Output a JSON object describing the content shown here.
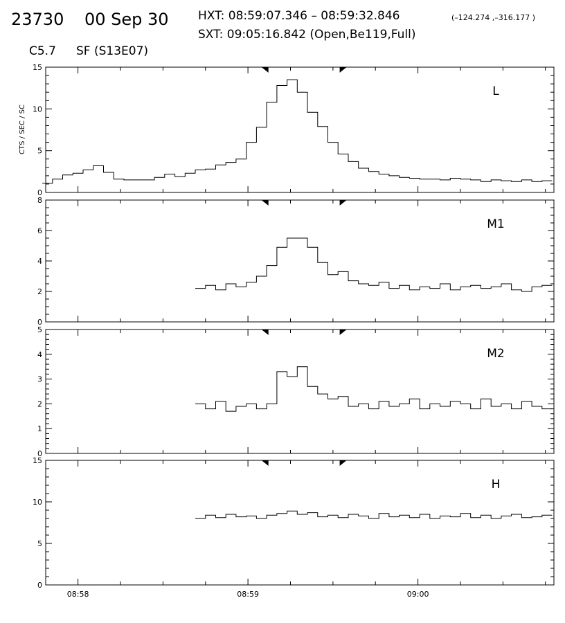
{
  "header": {
    "flare_id": "23730",
    "date": "00 Sep 30",
    "hxt_label": "HXT: 08:59:07.346 – 08:59:32.846",
    "hxt_coords": "(–124.274 ,–316.177 )",
    "sxt_label": "SXT: 09:05:16.842 (Open,Be119,Full)",
    "goes_class": "C5.7",
    "location": "SF (S13E07)"
  },
  "chart_data": {
    "type": "line",
    "step": true,
    "shared_x": {
      "tick_labels": [
        "08:58",
        "08:59",
        "09:00"
      ],
      "tick_minutes": [
        0,
        1,
        2
      ],
      "xlim_minutes": [
        -0.19,
        2.8
      ],
      "minor_per_major": 4
    },
    "ylabel": "CTS / SEC / SC",
    "interval_markers_minutes": [
      1.1,
      1.56
    ],
    "panels": [
      {
        "label": "L",
        "ylim": [
          0,
          15
        ],
        "ytick_labels": [
          "0",
          "5",
          "10",
          "15"
        ],
        "ytick_values": [
          0,
          5,
          10,
          15
        ],
        "minor_step": 1,
        "x_minutes": [
          -0.18,
          -0.12,
          -0.06,
          -0.0,
          0.06,
          0.12,
          0.18,
          0.24,
          0.3,
          0.36,
          0.42,
          0.48,
          0.54,
          0.6,
          0.66,
          0.72,
          0.78,
          0.84,
          0.9,
          0.96,
          1.02,
          1.08,
          1.14,
          1.2,
          1.26,
          1.32,
          1.38,
          1.44,
          1.5,
          1.56,
          1.62,
          1.68,
          1.74,
          1.8,
          1.86,
          1.92,
          1.98,
          2.04,
          2.1,
          2.16,
          2.22,
          2.28,
          2.34,
          2.4,
          2.46,
          2.52,
          2.58,
          2.64,
          2.7,
          2.76
        ],
        "values": [
          1.1,
          1.6,
          2.1,
          2.3,
          2.7,
          3.2,
          2.4,
          1.6,
          1.5,
          1.5,
          1.5,
          1.8,
          2.2,
          1.9,
          2.3,
          2.7,
          2.8,
          3.3,
          3.6,
          4.0,
          6.0,
          7.8,
          10.8,
          12.8,
          13.5,
          12.0,
          9.6,
          7.9,
          6.0,
          4.6,
          3.7,
          2.9,
          2.5,
          2.2,
          2.0,
          1.8,
          1.7,
          1.6,
          1.6,
          1.5,
          1.7,
          1.6,
          1.5,
          1.3,
          1.5,
          1.4,
          1.3,
          1.5,
          1.3,
          1.4
        ]
      },
      {
        "label": "M1",
        "ylim": [
          0,
          8
        ],
        "ytick_labels": [
          "0",
          "2",
          "4",
          "6",
          "8"
        ],
        "ytick_values": [
          0,
          2,
          4,
          6,
          8
        ],
        "minor_step": 0.5,
        "x_minutes": [
          0.72,
          0.78,
          0.84,
          0.9,
          0.96,
          1.02,
          1.08,
          1.14,
          1.2,
          1.26,
          1.32,
          1.38,
          1.44,
          1.5,
          1.56,
          1.62,
          1.68,
          1.74,
          1.8,
          1.86,
          1.92,
          1.98,
          2.04,
          2.1,
          2.16,
          2.22,
          2.28,
          2.34,
          2.4,
          2.46,
          2.52,
          2.58,
          2.64,
          2.7,
          2.76
        ],
        "values": [
          2.2,
          2.4,
          2.1,
          2.5,
          2.3,
          2.6,
          3.0,
          3.7,
          4.9,
          5.5,
          5.5,
          4.9,
          3.9,
          3.1,
          3.3,
          2.7,
          2.5,
          2.4,
          2.6,
          2.2,
          2.4,
          2.1,
          2.3,
          2.2,
          2.5,
          2.1,
          2.3,
          2.4,
          2.2,
          2.3,
          2.5,
          2.1,
          2.0,
          2.3,
          2.4
        ]
      },
      {
        "label": "M2",
        "ylim": [
          0,
          5
        ],
        "ytick_labels": [
          "0",
          "1",
          "2",
          "3",
          "4",
          "5"
        ],
        "ytick_values": [
          0,
          1,
          2,
          3,
          4,
          5
        ],
        "minor_step": 0.2,
        "x_minutes": [
          0.72,
          0.78,
          0.84,
          0.9,
          0.96,
          1.02,
          1.08,
          1.14,
          1.2,
          1.26,
          1.32,
          1.38,
          1.44,
          1.5,
          1.56,
          1.62,
          1.68,
          1.74,
          1.8,
          1.86,
          1.92,
          1.98,
          2.04,
          2.1,
          2.16,
          2.22,
          2.28,
          2.34,
          2.4,
          2.46,
          2.52,
          2.58,
          2.64,
          2.7,
          2.76
        ],
        "values": [
          2.0,
          1.8,
          2.1,
          1.7,
          1.9,
          2.0,
          1.8,
          2.0,
          3.3,
          3.1,
          3.5,
          2.7,
          2.4,
          2.2,
          2.3,
          1.9,
          2.0,
          1.8,
          2.1,
          1.9,
          2.0,
          2.2,
          1.8,
          2.0,
          1.9,
          2.1,
          2.0,
          1.8,
          2.2,
          1.9,
          2.0,
          1.8,
          2.1,
          1.9,
          1.8
        ]
      },
      {
        "label": "H",
        "ylim": [
          0,
          15
        ],
        "ytick_labels": [
          "0",
          "5",
          "10",
          "15"
        ],
        "ytick_values": [
          0,
          5,
          10,
          15
        ],
        "minor_step": 1,
        "x_minutes": [
          0.72,
          0.78,
          0.84,
          0.9,
          0.96,
          1.02,
          1.08,
          1.14,
          1.2,
          1.26,
          1.32,
          1.38,
          1.44,
          1.5,
          1.56,
          1.62,
          1.68,
          1.74,
          1.8,
          1.86,
          1.92,
          1.98,
          2.04,
          2.1,
          2.16,
          2.22,
          2.28,
          2.34,
          2.4,
          2.46,
          2.52,
          2.58,
          2.64,
          2.7,
          2.76
        ],
        "values": [
          8.0,
          8.4,
          8.1,
          8.5,
          8.2,
          8.3,
          8.0,
          8.4,
          8.6,
          8.9,
          8.5,
          8.7,
          8.2,
          8.4,
          8.1,
          8.5,
          8.3,
          8.0,
          8.6,
          8.2,
          8.4,
          8.1,
          8.5,
          8.0,
          8.3,
          8.2,
          8.6,
          8.1,
          8.4,
          8.0,
          8.3,
          8.5,
          8.1,
          8.2,
          8.4
        ]
      }
    ]
  }
}
